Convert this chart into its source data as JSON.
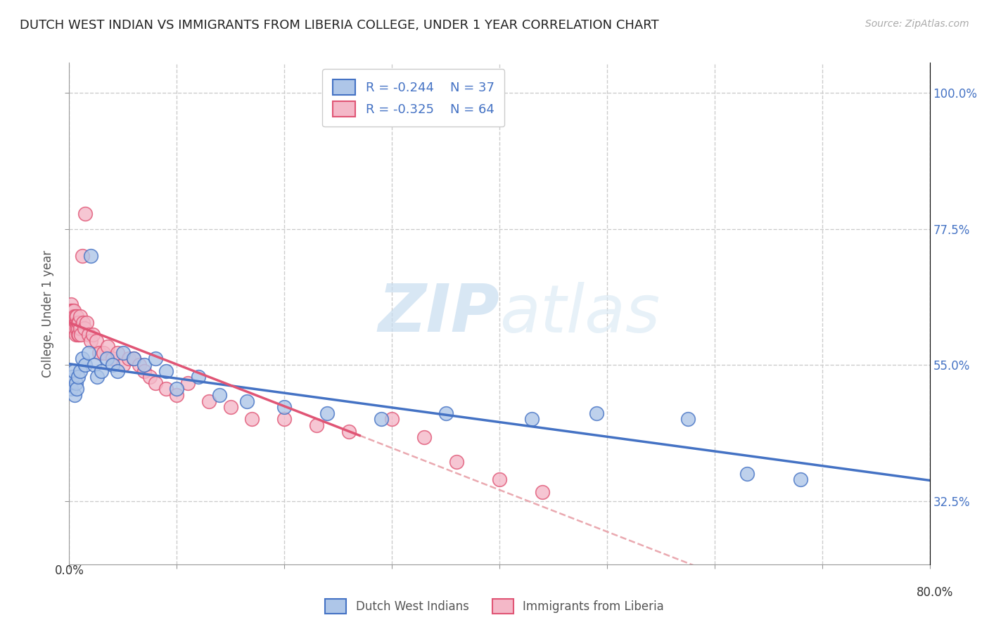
{
  "title": "DUTCH WEST INDIAN VS IMMIGRANTS FROM LIBERIA COLLEGE, UNDER 1 YEAR CORRELATION CHART",
  "source": "Source: ZipAtlas.com",
  "ylabel": "College, Under 1 year",
  "right_yticklabels": [
    "32.5%",
    "55.0%",
    "77.5%",
    "100.0%"
  ],
  "right_ytick_vals": [
    0.325,
    0.55,
    0.775,
    1.0
  ],
  "legend_label1": "Dutch West Indians",
  "legend_label2": "Immigrants from Liberia",
  "R1": -0.244,
  "N1": 37,
  "R2": -0.325,
  "N2": 64,
  "color_blue_fill": "#aec6e8",
  "color_pink_fill": "#f4b8c8",
  "color_blue_line": "#4472c4",
  "color_pink_line": "#e05575",
  "color_dashed": "#e8a0a8",
  "watermark_zip": "ZIP",
  "watermark_atlas": "atlas",
  "xlim": [
    0.0,
    0.8
  ],
  "ylim": [
    0.22,
    1.05
  ],
  "blue_x": [
    0.001,
    0.002,
    0.003,
    0.004,
    0.005,
    0.006,
    0.007,
    0.008,
    0.01,
    0.012,
    0.015,
    0.018,
    0.02,
    0.023,
    0.026,
    0.03,
    0.035,
    0.04,
    0.045,
    0.05,
    0.06,
    0.07,
    0.08,
    0.09,
    0.1,
    0.12,
    0.14,
    0.165,
    0.2,
    0.24,
    0.29,
    0.35,
    0.43,
    0.49,
    0.575,
    0.63,
    0.68
  ],
  "blue_y": [
    0.52,
    0.51,
    0.53,
    0.54,
    0.5,
    0.52,
    0.51,
    0.53,
    0.54,
    0.56,
    0.55,
    0.57,
    0.73,
    0.55,
    0.53,
    0.54,
    0.56,
    0.55,
    0.54,
    0.57,
    0.56,
    0.55,
    0.56,
    0.54,
    0.51,
    0.53,
    0.5,
    0.49,
    0.48,
    0.47,
    0.46,
    0.47,
    0.46,
    0.47,
    0.46,
    0.37,
    0.36
  ],
  "pink_x": [
    0.001,
    0.001,
    0.001,
    0.002,
    0.002,
    0.002,
    0.003,
    0.003,
    0.003,
    0.004,
    0.004,
    0.004,
    0.005,
    0.005,
    0.005,
    0.006,
    0.006,
    0.006,
    0.007,
    0.007,
    0.007,
    0.008,
    0.008,
    0.008,
    0.009,
    0.009,
    0.01,
    0.01,
    0.011,
    0.012,
    0.013,
    0.014,
    0.015,
    0.016,
    0.018,
    0.02,
    0.022,
    0.025,
    0.028,
    0.032,
    0.036,
    0.04,
    0.045,
    0.05,
    0.055,
    0.06,
    0.065,
    0.07,
    0.075,
    0.08,
    0.09,
    0.1,
    0.11,
    0.13,
    0.15,
    0.17,
    0.2,
    0.23,
    0.26,
    0.3,
    0.33,
    0.36,
    0.4,
    0.44
  ],
  "pink_y": [
    0.62,
    0.64,
    0.63,
    0.65,
    0.64,
    0.63,
    0.63,
    0.64,
    0.62,
    0.63,
    0.62,
    0.64,
    0.62,
    0.63,
    0.61,
    0.62,
    0.63,
    0.6,
    0.62,
    0.61,
    0.63,
    0.6,
    0.62,
    0.61,
    0.6,
    0.62,
    0.61,
    0.63,
    0.6,
    0.73,
    0.62,
    0.61,
    0.8,
    0.62,
    0.6,
    0.59,
    0.6,
    0.59,
    0.57,
    0.57,
    0.58,
    0.56,
    0.57,
    0.55,
    0.56,
    0.56,
    0.55,
    0.54,
    0.53,
    0.52,
    0.51,
    0.5,
    0.52,
    0.49,
    0.48,
    0.46,
    0.46,
    0.45,
    0.44,
    0.46,
    0.43,
    0.39,
    0.36,
    0.34
  ],
  "xtick_positions": [
    0.0,
    0.1,
    0.2,
    0.3,
    0.4,
    0.5,
    0.6,
    0.7,
    0.8
  ]
}
